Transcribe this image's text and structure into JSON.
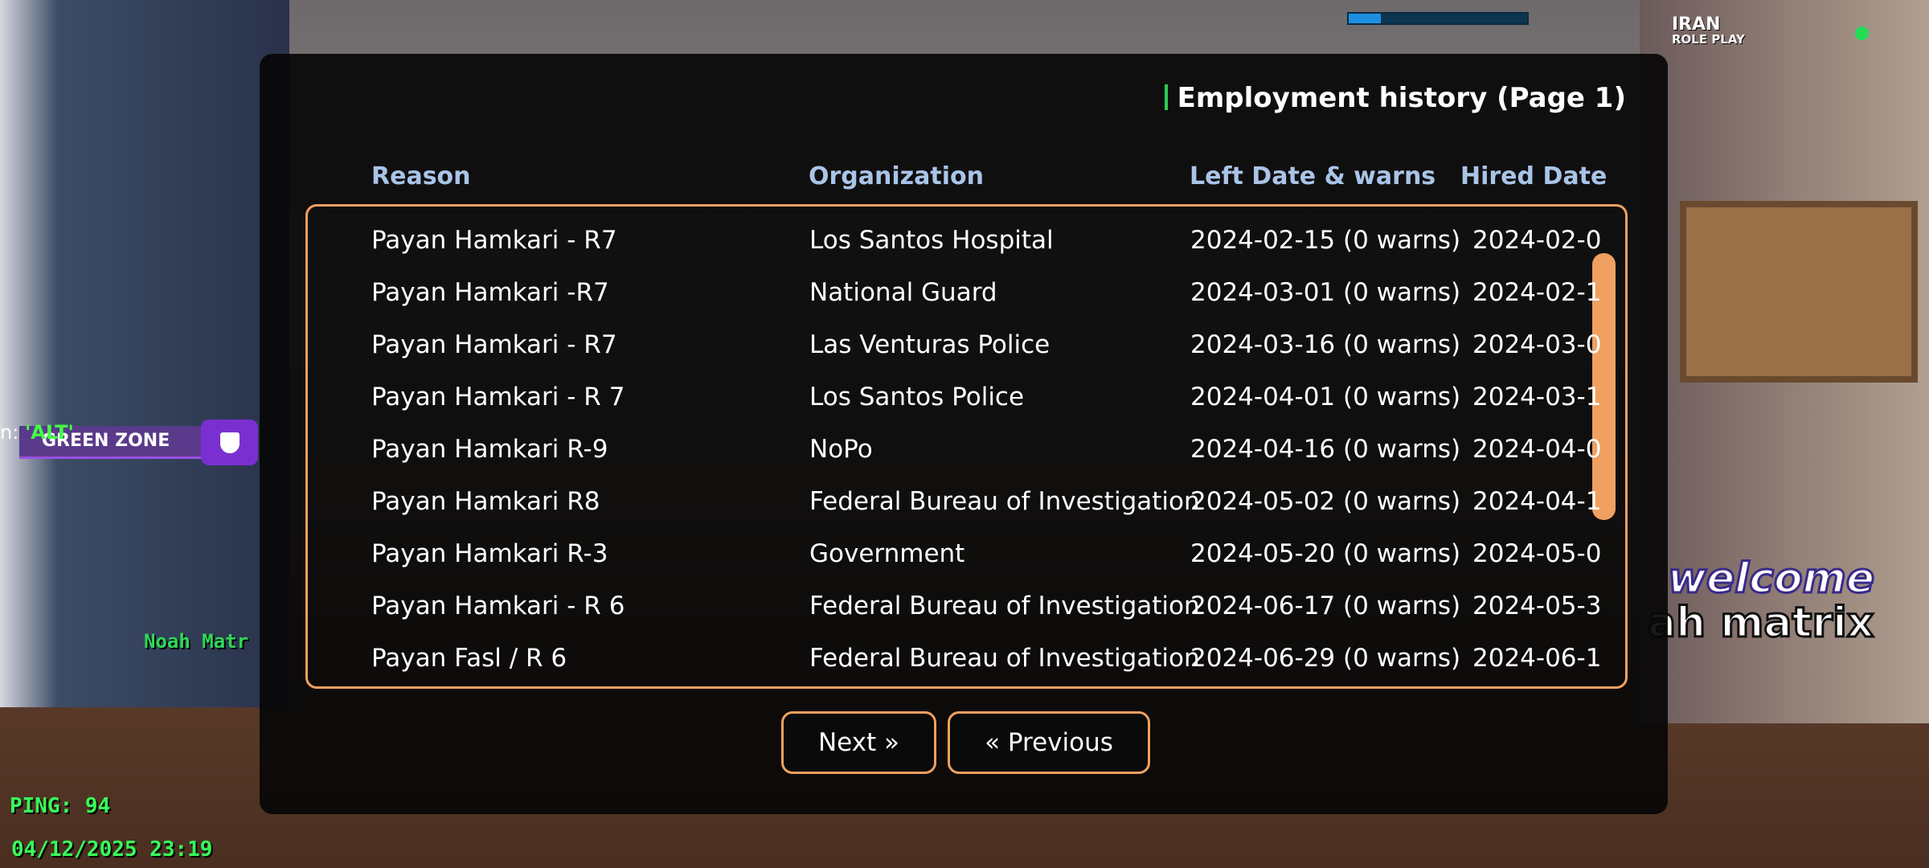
{
  "hud": {
    "ping": "PING: 94",
    "datetime": "04/12/2025 23:19",
    "zone": "GREEN ZONE",
    "alt_prefix": "n: ",
    "alt": "'ALT'",
    "player": "Noah Matr",
    "welcome": "welcome",
    "name": "ah matrix",
    "logo": [
      "IRAN",
      "ROLE PLAY"
    ]
  },
  "dialog": {
    "title": "Employment history (Page 1)",
    "columns": [
      "Reason",
      "Organization",
      "Left Date & warns",
      "Hired Date"
    ],
    "rows": [
      [
        "Payan Hamkari - R7",
        "Los Santos Hospital",
        "2024-02-15 (0 warns)",
        "2024-02-0"
      ],
      [
        "Payan Hamkari -R7",
        "National Guard",
        "2024-03-01 (0 warns)",
        "2024-02-1"
      ],
      [
        "Payan Hamkari - R7",
        "Las Venturas Police",
        "2024-03-16 (0 warns)",
        "2024-03-0"
      ],
      [
        "Payan Hamkari - R 7",
        "Los Santos Police",
        "2024-04-01 (0 warns)",
        "2024-03-1"
      ],
      [
        "Payan Hamkari R-9",
        "NoPo",
        "2024-04-16 (0 warns)",
        "2024-04-0"
      ],
      [
        "Payan Hamkari R8",
        "Federal Bureau of Investigation",
        "2024-05-02 (0 warns)",
        "2024-04-1"
      ],
      [
        "Payan Hamkari R-3",
        "Government",
        "2024-05-20 (0 warns)",
        "2024-05-0"
      ],
      [
        "Payan Hamkari - R 6",
        "Federal Bureau of Investigation",
        "2024-06-17 (0 warns)",
        "2024-05-3"
      ],
      [
        "Payan Fasl / R 6",
        "Federal Bureau of Investigation",
        "2024-06-29 (0 warns)",
        "2024-06-1"
      ]
    ],
    "buttons": [
      "Next »",
      "« Previous"
    ]
  }
}
